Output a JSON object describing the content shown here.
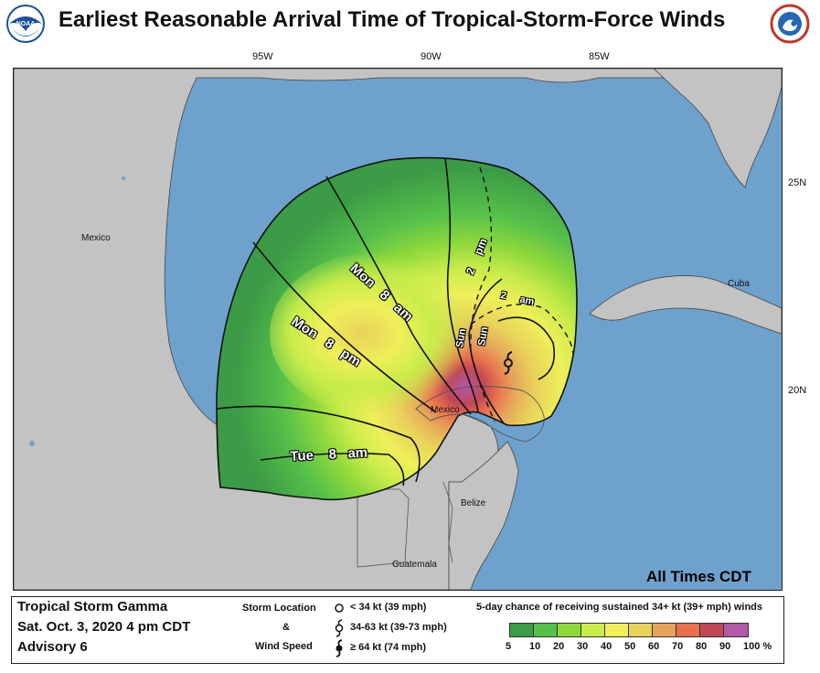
{
  "header": {
    "title": "Earliest Reasonable Arrival Time of Tropical-Storm-Force Winds",
    "noaa_logo_text": "NOAA",
    "nws_logo_text": "NATIONAL WEATHER SERVICE"
  },
  "axes": {
    "longitude_labels": [
      "95W",
      "90W",
      "85W"
    ],
    "latitude_labels": [
      "25N",
      "20N"
    ]
  },
  "map": {
    "place_labels": {
      "mexico_west": "Mexico",
      "mexico_yucatan": "Mexico",
      "cuba": "Cuba",
      "belize": "Belize",
      "guatemala": "Guatemala"
    },
    "time_labels": {
      "mon_8am": [
        "Mon",
        "8",
        "am"
      ],
      "mon_8pm": [
        "Mon",
        "8",
        "pm"
      ],
      "tue_8am": [
        "Tue",
        "8",
        "am"
      ],
      "sun_2pm": [
        "2",
        "pm"
      ],
      "sun_a": "Sun",
      "sun_b": "Sun",
      "sun_2am": [
        "2",
        "am"
      ]
    },
    "timezone_note": "All Times CDT",
    "colors": {
      "ocean": "#6ea2cd",
      "land": "#c3c3c3"
    }
  },
  "footer": {
    "storm_name": "Tropical Storm Gamma",
    "datetime": "Sat. Oct. 3, 2020  4 pm CDT",
    "advisory": "Advisory 6",
    "storm_location_label": "Storm Location",
    "amp": "&",
    "wind_speed_label": "Wind Speed",
    "sym_lt34": "< 34 kt (39 mph)",
    "sym_34_63": "34-63 kt (39-73 mph)",
    "sym_ge64": "≥ 64 kt (74 mph)",
    "legend_title": "5-day chance of receiving sustained 34+ kt (39+ mph) winds",
    "legend_values": [
      "5",
      "10",
      "20",
      "30",
      "40",
      "50",
      "60",
      "70",
      "80",
      "90",
      "100 %"
    ],
    "legend_colors": [
      "#3c9b46",
      "#55c04a",
      "#8fd83c",
      "#c9ec4a",
      "#efef5a",
      "#e8d25a",
      "#e6a45a",
      "#e8704e",
      "#c04856",
      "#b05aa6"
    ]
  }
}
